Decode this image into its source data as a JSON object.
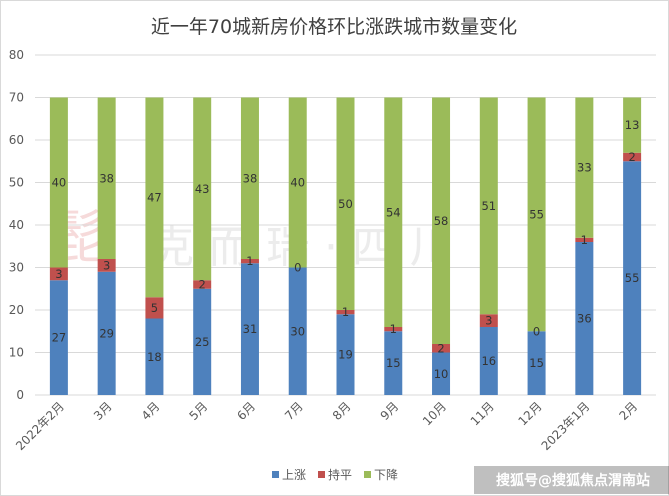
{
  "chart_data": {
    "type": "bar",
    "stacked": true,
    "title": "近一年70城新房价格环比涨跌城市数量变化",
    "categories": [
      "2022年2月",
      "3月",
      "4月",
      "5月",
      "6月",
      "7月",
      "8月",
      "9月",
      "10月",
      "11月",
      "12月",
      "2023年1月",
      "2月"
    ],
    "series": [
      {
        "name": "上涨",
        "color": "#4e81bd",
        "values": [
          27,
          29,
          18,
          25,
          31,
          30,
          19,
          15,
          10,
          16,
          15,
          36,
          55
        ]
      },
      {
        "name": "持平",
        "color": "#c0504d",
        "values": [
          3,
          3,
          5,
          2,
          1,
          0,
          1,
          1,
          2,
          3,
          0,
          1,
          2
        ]
      },
      {
        "name": "下降",
        "color": "#9bbb59",
        "values": [
          40,
          38,
          47,
          43,
          38,
          40,
          50,
          54,
          58,
          51,
          55,
          33,
          13
        ]
      }
    ],
    "ylim": [
      0,
      80
    ],
    "yticks": [
      "0",
      "10",
      "20",
      "30",
      "40",
      "50",
      "60",
      "70",
      "80"
    ],
    "grid": true,
    "legend": "bottom-center"
  },
  "watermark": {
    "logo_text": "髭",
    "text": "克 而 瑞 · 四 川"
  },
  "footer": {
    "text": "搜狐号@搜狐焦点渭南站"
  }
}
